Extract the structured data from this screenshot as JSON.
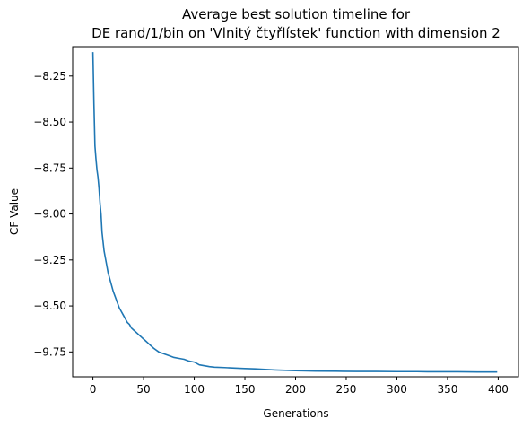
{
  "chart_data": {
    "type": "line",
    "title_line1": "Average best solution timeline for",
    "title_line2": "DE rand/1/bin on 'Vlnitý čtyřlístek' function with dimension 2",
    "xlabel": "Generations",
    "ylabel": "CF Value",
    "xlim": [
      -20,
      420
    ],
    "ylim": [
      -9.885,
      -8.09
    ],
    "xticks": [
      0,
      50,
      100,
      150,
      200,
      250,
      300,
      350,
      400
    ],
    "yticks": [
      -8.25,
      -8.5,
      -8.75,
      -9.0,
      -9.25,
      -9.5,
      -9.75
    ],
    "ytick_labels": [
      "−8.25",
      "−8.50",
      "−8.75",
      "−9.00",
      "−9.25",
      "−9.50",
      "−9.75"
    ],
    "grid": false,
    "line_color": "#1f77b4",
    "series": [
      {
        "x": [
          0,
          1,
          2,
          3,
          4,
          5,
          6,
          7,
          8,
          9,
          10,
          11,
          12,
          13,
          14,
          15,
          16,
          17,
          18,
          19,
          20,
          22,
          24,
          26,
          28,
          30,
          32,
          34,
          36,
          38,
          40,
          42,
          44,
          46,
          48,
          50,
          52,
          54,
          56,
          58,
          60,
          65,
          70,
          75,
          80,
          85,
          90,
          95,
          100,
          105,
          110,
          115,
          120,
          130,
          140,
          150,
          160,
          170,
          180,
          190,
          200,
          210,
          220,
          240,
          260,
          280,
          300,
          320,
          330,
          335,
          340,
          360,
          380,
          399
        ],
        "y": [
          -8.12,
          -8.4,
          -8.63,
          -8.7,
          -8.76,
          -8.8,
          -8.86,
          -8.94,
          -9.0,
          -9.1,
          -9.15,
          -9.2,
          -9.23,
          -9.26,
          -9.29,
          -9.32,
          -9.34,
          -9.36,
          -9.38,
          -9.4,
          -9.42,
          -9.45,
          -9.48,
          -9.51,
          -9.53,
          -9.55,
          -9.57,
          -9.59,
          -9.6,
          -9.62,
          -9.63,
          -9.64,
          -9.65,
          -9.66,
          -9.67,
          -9.68,
          -9.69,
          -9.7,
          -9.71,
          -9.72,
          -9.73,
          -9.75,
          -9.76,
          -9.77,
          -9.78,
          -9.785,
          -9.79,
          -9.8,
          -9.805,
          -9.82,
          -9.825,
          -9.83,
          -9.833,
          -9.835,
          -9.838,
          -9.84,
          -9.842,
          -9.845,
          -9.848,
          -9.85,
          -9.852,
          -9.853,
          -9.854,
          -9.855,
          -9.856,
          -9.856,
          -9.857,
          -9.857,
          -9.858,
          -9.858,
          -9.858,
          -9.858,
          -9.859,
          -9.859
        ]
      }
    ]
  }
}
